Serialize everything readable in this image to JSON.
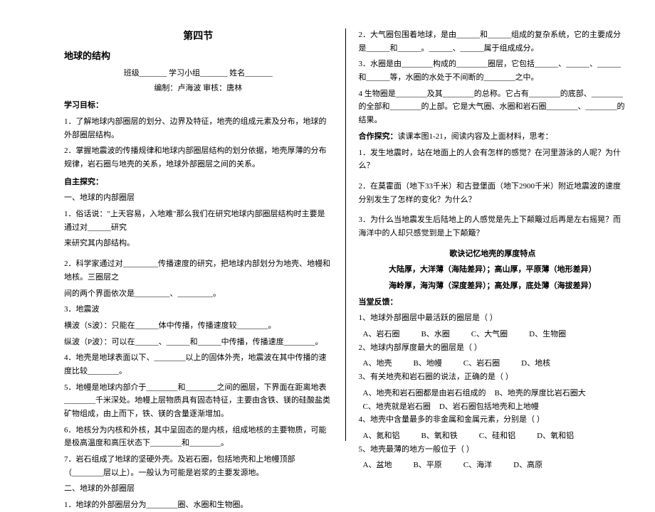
{
  "left": {
    "chapter": "第四节",
    "title": "地球的结构",
    "info_class": "班级_______  学习小组_______  姓名_______",
    "info_editor": "编制：卢海波    审核：唐林",
    "h_goal": "学习目标：",
    "goal1": "1．了解地球内部圈层的划分、边界及特征，地壳的组成元素及分布，地球的外部圈层结构。",
    "goal2": "2．掌握地震波的传播规律和地球内部圈层结构的划分依据，地壳厚薄的分布规律，岩石圈与地壳的关系，地球外部圈层之间的关系。",
    "h_explore": "自主探究：",
    "s1": "一、地球的内部圈层",
    "p1a": "1．俗话说：\"上天容易，入地难\"那么我们在研究地球内部圈层结构时主要是通过对______研究",
    "p1b": "来研究其内部结构。",
    "p2a": "2．科学家通过对_________传播速度的研究，把地球内部划分为地壳、地幔和地核。三圈层之",
    "p2b": "间的两个界面依次是_________、_________。",
    "p3": "3．地震波",
    "p3a": "横波（S波）：只能在______体中传播，传播速度较________。",
    "p3b": "纵波（P波）：可以在______、______和______中传播，传播速度________。",
    "p4": "4．地壳是地球表面以下、________以上的固体外壳，地震波在其中传播的速度比较________。",
    "p5": "5．地幔是地球内部介于________和________之间的圈层，下界面在距离地表________千米深处。地幔上层物质具有固态特征，主要由含铁、镁的硅酸盐类矿物组成，由上而下，铁、镁的含量逐渐增加。",
    "p6": "6．地核分为内核和外核，其中呈固态的是内核，组成地核的主要物质，可能是极高温度和高压状态下________和________。",
    "p7": "7．岩石组成了地球的坚硬外壳。及岩石圈，包括地壳和上地幔顶部（________层以上）。一般认为可能是岩浆的主要发源地。",
    "s2": "二、地球的外部圈层",
    "p8": "1．地球的外部圈层分为________圈、水圈和生物圈。"
  },
  "right": {
    "p2": "2．大气圈包围着地球，是由______和______组成的复杂系统，它的主要成分是______和______。______、______属于组成成分。",
    "p3": "3．水圈是由________构成的________圈层，它包括______、______、______和______等，水圈的水处于不间断的________之中。",
    "p4": "4 生物圈是________及其________的总称。它占有________的底部、________的全部和________的上部。它是大气圈、水圈和岩石圈________、________的结果。",
    "h_coop": "合作探究：",
    "coop_intro": "读课本图1-21，阅读内容及上面材料，思考：",
    "q1": "1．发生地震时，站在地面上的人会有怎样的感觉？在河里游泳的人呢？为什么？",
    "q2": "2．在莫霍面（地下33千米）和古登堡面（地下2900千米）附近地震波的速度分别发生了怎样的变化？为什么？",
    "q3": "3．为什么当地震发生后陆地上的人感觉是先上下颠簸过后再是左右摇晃？而海洋中的人却只感觉到是上下颠簸？",
    "mnemonic_title": "歌诀记忆地壳的厚度特点",
    "mnemonic_l1": "大陆厚，大洋薄（海陆差异）；高山厚，平原薄（地形差异）",
    "mnemonic_l2": "海岭厚，海沟薄（深度差异）；高处厚，底处薄（海拔差异）",
    "h_feedback": "当堂反馈：",
    "fb1_q": "1、地球外部圈层中最活跃的圈层是（    ）",
    "fb1_a": "A、岩石圈",
    "fb1_b": "B、水圈",
    "fb1_c": "C、大气圈",
    "fb1_d": "D、生物圈",
    "fb2_q": "2、地球内部厚度最大的圈层是（    ）",
    "fb2_a": "A、地壳",
    "fb2_b": "B、地幔",
    "fb2_c": "C、岩石圈",
    "fb2_d": "D、地核",
    "fb3_q": "3、有关地壳和岩石圈的说法，正确的是（    ）",
    "fb3_a": "A、地壳和岩石圈都是由岩石组成的",
    "fb3_b": "B、地壳的厚度比岩石圈大",
    "fb3_c": "C、地壳就是岩石圈",
    "fb3_d": "D、岩石圈包括地壳和上地幔",
    "fb4_q": "4、地壳中含量最多的非金属和金属元素，分别是（    ）",
    "fb4_a": "A、氮和铝",
    "fb4_b": "B、氧和铁",
    "fb4_c": "C、硅和铝",
    "fb4_d": "D、氧和铝",
    "fb5_q": "5、地壳最薄的地方一般位于（    ）",
    "fb5_a": "A、盆地",
    "fb5_b": "B、平原",
    "fb5_c": "C、海洋",
    "fb5_d": "D、高原"
  }
}
